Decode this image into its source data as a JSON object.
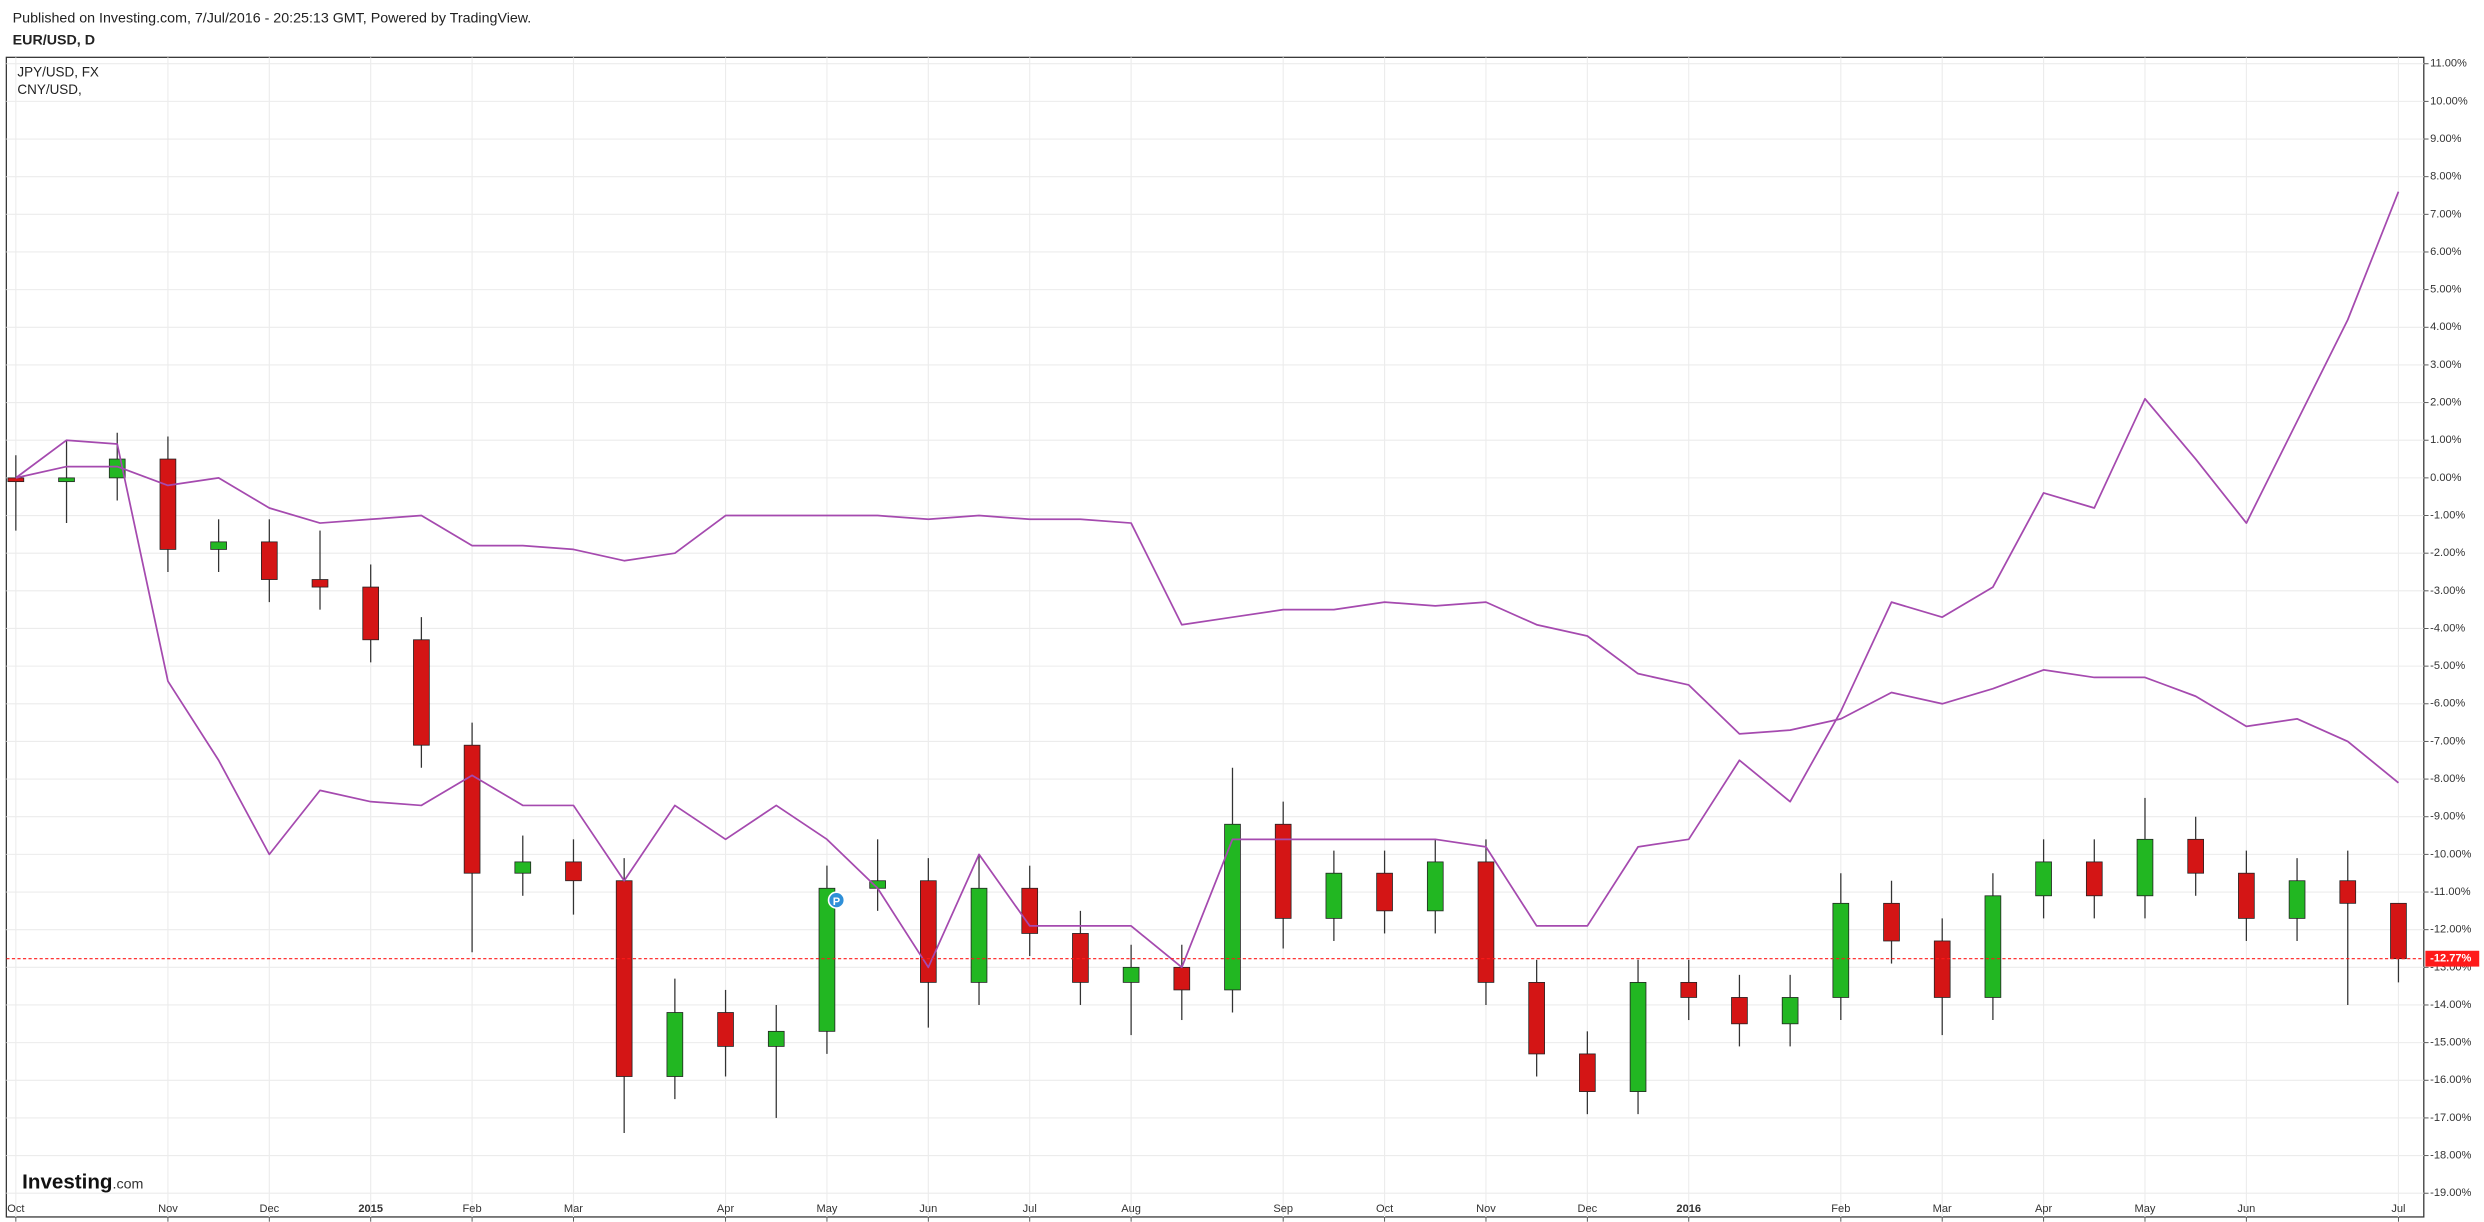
{
  "chart_data": {
    "type": "candlestick",
    "source": "Published on Investing.com, 7/Jul/2016 - 20:25:13 GMT, Powered by TradingView.",
    "title": "EUR/USD, D",
    "categories": [
      "Oct",
      null,
      null,
      "Nov",
      null,
      "Dec",
      null,
      "2015",
      null,
      "Feb",
      null,
      "Mar",
      null,
      null,
      "Apr",
      null,
      "May",
      null,
      "Jun",
      null,
      "Jul",
      null,
      "Aug",
      null,
      null,
      "Sep",
      null,
      "Oct",
      null,
      "Nov",
      null,
      "Dec",
      null,
      "2016",
      null,
      null,
      "Feb",
      null,
      "Mar",
      null,
      "Apr",
      null,
      "May",
      null,
      "Jun",
      null,
      null,
      "Jul"
    ],
    "year_labels": [
      "2015",
      "2016"
    ],
    "ohlc": {
      "open": [
        0.0,
        -0.1,
        0.0,
        0.5,
        -1.9,
        -1.7,
        -2.7,
        -2.9,
        -4.3,
        -7.1,
        -10.5,
        -10.2,
        -10.7,
        -15.9,
        -14.2,
        -15.1,
        -14.7,
        -10.9,
        -10.7,
        -13.4,
        -10.9,
        -12.1,
        -13.4,
        -13.0,
        -13.6,
        -9.2,
        -11.7,
        -10.5,
        -11.5,
        -10.2,
        -13.4,
        -15.3,
        -16.3,
        -13.4,
        -13.8,
        -14.5,
        -13.8,
        -11.3,
        -12.3,
        -13.8,
        -11.1,
        -10.2,
        -11.1,
        -9.6,
        -10.5,
        -11.7,
        -10.7,
        -11.3
      ],
      "high": [
        0.6,
        1.0,
        1.2,
        1.1,
        -1.1,
        -1.1,
        -1.4,
        -2.3,
        -3.7,
        -6.5,
        -9.5,
        -9.6,
        -10.1,
        -13.3,
        -13.6,
        -14.0,
        -10.3,
        -9.6,
        -10.1,
        -10.0,
        -10.3,
        -11.5,
        -12.4,
        -12.4,
        -7.7,
        -8.6,
        -9.9,
        -9.9,
        -9.6,
        -9.6,
        -12.8,
        -14.7,
        -12.8,
        -12.8,
        -13.2,
        -13.2,
        -10.5,
        -10.7,
        -11.7,
        -10.5,
        -9.6,
        -9.6,
        -8.5,
        -9.0,
        -9.9,
        -10.1,
        -9.9,
        -11.9
      ],
      "low": [
        -1.4,
        -1.2,
        -0.6,
        -2.5,
        -2.5,
        -3.3,
        -3.5,
        -4.9,
        -7.7,
        -12.6,
        -11.1,
        -11.6,
        -17.4,
        -16.5,
        -15.9,
        -17.0,
        -15.3,
        -11.5,
        -14.6,
        -14.0,
        -12.7,
        -14.0,
        -14.8,
        -14.4,
        -14.2,
        -12.5,
        -12.3,
        -12.1,
        -12.1,
        -14.0,
        -15.9,
        -16.9,
        -16.9,
        -14.4,
        -15.1,
        -15.1,
        -14.4,
        -12.9,
        -14.8,
        -14.4,
        -11.7,
        -11.7,
        -11.7,
        -11.1,
        -12.3,
        -12.3,
        -14.0,
        -13.4
      ],
      "close": [
        -0.1,
        0.0,
        0.5,
        -1.9,
        -1.7,
        -2.7,
        -2.9,
        -4.3,
        -7.1,
        -10.5,
        -10.2,
        -10.7,
        -15.9,
        -14.2,
        -15.1,
        -14.7,
        -10.9,
        -10.7,
        -13.4,
        -10.9,
        -12.1,
        -13.4,
        -13.0,
        -13.6,
        -9.2,
        -11.7,
        -10.5,
        -11.5,
        -10.2,
        -13.4,
        -15.3,
        -16.3,
        -13.4,
        -13.8,
        -14.5,
        -13.8,
        -11.3,
        -12.3,
        -13.8,
        -11.1,
        -10.2,
        -11.1,
        -9.6,
        -10.5,
        -11.7,
        -10.7,
        -11.3,
        -12.77
      ]
    },
    "up_color": "#22b722",
    "down_color": "#d41515",
    "lines": [
      {
        "name": "JPY/USD, FX",
        "color": "#a54aaf",
        "values": [
          0.0,
          1.0,
          0.9,
          -5.4,
          -7.5,
          -10.0,
          -8.3,
          -8.6,
          -8.7,
          -7.9,
          -8.7,
          -8.7,
          -10.7,
          -8.7,
          -9.6,
          -8.7,
          -9.6,
          -10.9,
          -13.0,
          -10.0,
          -11.9,
          -11.9,
          -11.9,
          -13.0,
          -9.6,
          -9.6,
          -9.6,
          -9.6,
          -9.6,
          -9.8,
          -11.9,
          -11.9,
          -9.8,
          -9.6,
          -7.5,
          -8.6,
          -6.2,
          -3.3,
          -3.7,
          -2.9,
          -0.4,
          -0.8,
          2.1,
          0.5,
          -1.2,
          1.5,
          4.2,
          7.6
        ]
      },
      {
        "name": "CNY/USD,",
        "color": "#a54aaf",
        "values": [
          0.0,
          0.3,
          0.3,
          -0.2,
          0.0,
          -0.8,
          -1.2,
          -1.1,
          -1.0,
          -1.8,
          -1.8,
          -1.9,
          -2.2,
          -2.0,
          -1.0,
          -1.0,
          -1.0,
          -1.0,
          -1.1,
          -1.0,
          -1.1,
          -1.1,
          -1.2,
          -3.9,
          -3.7,
          -3.5,
          -3.5,
          -3.3,
          -3.4,
          -3.3,
          -3.9,
          -4.2,
          -5.2,
          -5.5,
          -6.8,
          -6.7,
          -6.4,
          -5.7,
          -6.0,
          -5.6,
          -5.1,
          -5.3,
          -5.3,
          -5.8,
          -6.6,
          -6.4,
          -7.0,
          -8.1
        ]
      }
    ],
    "ylim": [
      -19.63,
      11.17
    ],
    "yticks": [
      {
        "value": 11,
        "label": "11.00%"
      },
      {
        "value": 10,
        "label": "10.00%"
      },
      {
        "value": 9,
        "label": "9.00%"
      },
      {
        "value": 8,
        "label": "8.00%"
      },
      {
        "value": 7,
        "label": "7.00%"
      },
      {
        "value": 6,
        "label": "6.00%"
      },
      {
        "value": 5,
        "label": "5.00%"
      },
      {
        "value": 4,
        "label": "4.00%"
      },
      {
        "value": 3,
        "label": "3.00%"
      },
      {
        "value": 2,
        "label": "2.00%"
      },
      {
        "value": 1,
        "label": "1.00%"
      },
      {
        "value": 0,
        "label": "0.00%"
      },
      {
        "value": -1,
        "label": "-1.00%"
      },
      {
        "value": -2,
        "label": "-2.00%"
      },
      {
        "value": -3,
        "label": "-3.00%"
      },
      {
        "value": -4,
        "label": "-4.00%"
      },
      {
        "value": -5,
        "label": "-5.00%"
      },
      {
        "value": -6,
        "label": "-6.00%"
      },
      {
        "value": -7,
        "label": "-7.00%"
      },
      {
        "value": -8,
        "label": "-8.00%"
      },
      {
        "value": -9,
        "label": "-9.00%"
      },
      {
        "value": -10,
        "label": "-10.00%"
      },
      {
        "value": -11,
        "label": "-11.00%"
      },
      {
        "value": -12,
        "label": "-12.00%"
      },
      {
        "value": -13,
        "label": "-13.00%"
      },
      {
        "value": -14,
        "label": "-14.00%"
      },
      {
        "value": -15,
        "label": "-15.00%"
      },
      {
        "value": -16,
        "label": "-16.00%"
      },
      {
        "value": -17,
        "label": "-17.00%"
      },
      {
        "value": -18,
        "label": "-18.00%"
      },
      {
        "value": -19,
        "label": "-19.00%"
      }
    ],
    "grid": true,
    "current": {
      "value": -12.77,
      "label": "-12.77%",
      "color": "#ff1a1a"
    },
    "marker": "P",
    "logo": {
      "brand": "Investing",
      "suffix": ".com"
    }
  }
}
